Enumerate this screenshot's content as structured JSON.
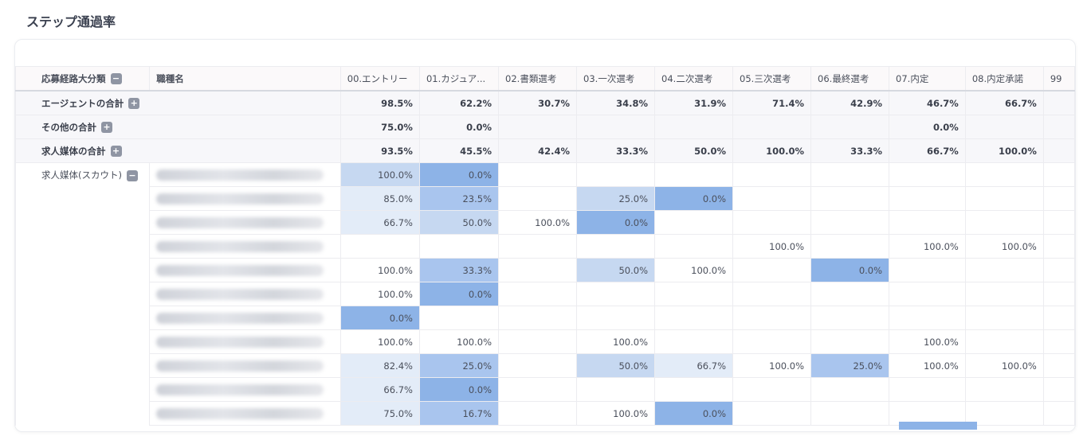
{
  "title": "ステップ通過率",
  "table": {
    "headers": [
      "応募経路大分類",
      "職種名",
      "00.エントリー",
      "01.カジュア...",
      "02.書類選考",
      "03.一次選考",
      "04.二次選考",
      "05.三次選考",
      "06.最終選考",
      "07.内定",
      "08.内定承諾",
      "99"
    ],
    "collapse_symbol": "−",
    "expand_symbol": "+",
    "summary_rows": [
      {
        "label": "エージェントの合計",
        "values": [
          "98.5%",
          "62.2%",
          "30.7%",
          "34.8%",
          "31.9%",
          "71.4%",
          "42.9%",
          "46.7%",
          "66.7%",
          ""
        ]
      },
      {
        "label": "その他の合計",
        "values": [
          "75.0%",
          "0.0%",
          "",
          "",
          "",
          "",
          "",
          "0.0%",
          "",
          ""
        ]
      },
      {
        "label": "求人媒体の合計",
        "values": [
          "93.5%",
          "45.5%",
          "42.4%",
          "33.3%",
          "50.0%",
          "100.0%",
          "33.3%",
          "66.7%",
          "100.0%",
          ""
        ]
      }
    ],
    "group_label": "求人媒体(スカウト)",
    "detail_rows": [
      {
        "values": [
          "100.0%",
          "0.0%",
          "",
          "",
          "",
          "",
          "",
          "",
          "",
          ""
        ],
        "shade": [
          2,
          4,
          0,
          0,
          0,
          0,
          0,
          0,
          0,
          0
        ]
      },
      {
        "values": [
          "85.0%",
          "23.5%",
          "",
          "25.0%",
          "0.0%",
          "",
          "",
          "",
          "",
          ""
        ],
        "shade": [
          1,
          3,
          0,
          2,
          4,
          0,
          0,
          0,
          0,
          0
        ]
      },
      {
        "values": [
          "66.7%",
          "50.0%",
          "100.0%",
          "0.0%",
          "",
          "",
          "",
          "",
          "",
          ""
        ],
        "shade": [
          1,
          2,
          0,
          4,
          0,
          0,
          0,
          0,
          0,
          0
        ]
      },
      {
        "values": [
          "",
          "",
          "",
          "",
          "",
          "100.0%",
          "",
          "100.0%",
          "100.0%",
          ""
        ],
        "shade": [
          0,
          0,
          0,
          0,
          0,
          0,
          0,
          0,
          0,
          0
        ]
      },
      {
        "values": [
          "100.0%",
          "33.3%",
          "",
          "50.0%",
          "100.0%",
          "",
          "0.0%",
          "",
          "",
          ""
        ],
        "shade": [
          0,
          3,
          0,
          2,
          0,
          0,
          4,
          0,
          0,
          0
        ]
      },
      {
        "values": [
          "100.0%",
          "0.0%",
          "",
          "",
          "",
          "",
          "",
          "",
          "",
          ""
        ],
        "shade": [
          0,
          4,
          0,
          0,
          0,
          0,
          0,
          0,
          0,
          0
        ]
      },
      {
        "values": [
          "0.0%",
          "",
          "",
          "",
          "",
          "",
          "",
          "",
          "",
          ""
        ],
        "shade": [
          4,
          0,
          0,
          0,
          0,
          0,
          0,
          0,
          0,
          0
        ]
      },
      {
        "values": [
          "100.0%",
          "100.0%",
          "",
          "100.0%",
          "",
          "",
          "",
          "100.0%",
          "",
          ""
        ],
        "shade": [
          0,
          0,
          0,
          0,
          0,
          0,
          0,
          0,
          0,
          0
        ]
      },
      {
        "values": [
          "82.4%",
          "25.0%",
          "",
          "50.0%",
          "66.7%",
          "100.0%",
          "25.0%",
          "100.0%",
          "100.0%",
          ""
        ],
        "shade": [
          1,
          3,
          0,
          2,
          1,
          0,
          3,
          0,
          0,
          0
        ]
      },
      {
        "values": [
          "66.7%",
          "0.0%",
          "",
          "",
          "",
          "",
          "",
          "",
          "",
          ""
        ],
        "shade": [
          1,
          4,
          0,
          0,
          0,
          0,
          0,
          0,
          0,
          0
        ]
      },
      {
        "values": [
          "75.0%",
          "16.7%",
          "",
          "100.0%",
          "0.0%",
          "",
          "",
          "",
          "",
          ""
        ],
        "shade": [
          1,
          3,
          0,
          0,
          4,
          0,
          0,
          0,
          0,
          0
        ]
      }
    ]
  },
  "colors": {
    "shade_1": "#e3ecf8",
    "shade_2": "#c6d8f1",
    "shade_3": "#a9c5ee",
    "shade_4": "#8db3e7"
  }
}
